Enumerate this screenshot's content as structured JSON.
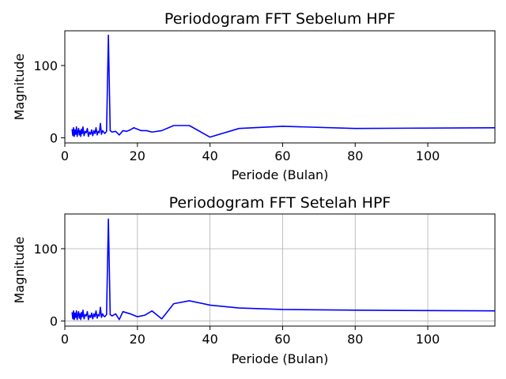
{
  "chart_data": [
    {
      "type": "line",
      "title": "Periodogram FFT Sebelum HPF",
      "xlabel": "Periode (Bulan)",
      "ylabel": "Magnitude",
      "xlim": [
        0,
        118.5
      ],
      "ylim": [
        -7,
        148
      ],
      "xticks": [
        "0",
        "20",
        "40",
        "60",
        "80",
        "100"
      ],
      "yticks": [
        "0",
        "100"
      ],
      "grid": false,
      "line_color": "#0000ff",
      "series": [
        {
          "x": [
            2.0,
            2.2,
            2.4,
            2.6,
            2.8,
            3.0,
            3.2,
            3.4,
            3.6,
            3.8,
            4.0,
            4.2,
            4.4,
            4.6,
            4.8,
            5.0,
            5.3,
            5.6,
            5.9,
            6.2,
            6.5,
            6.8,
            7.1,
            7.4,
            7.7,
            8.0,
            8.3,
            8.6,
            8.9,
            9.2,
            9.5,
            9.8,
            10.1,
            10.4,
            10.7,
            11.0,
            11.5,
            12.0,
            12.5,
            13.0,
            14.0,
            15.0,
            16.0,
            17.0,
            18.0,
            19.0,
            20.0,
            21.0,
            22.5,
            24.0,
            26.7,
            30.0,
            34.3,
            40.0,
            48.0,
            60.0,
            80.0,
            120.0
          ],
          "y": [
            12,
            3,
            14,
            2,
            11,
            5,
            15,
            2,
            9,
            13,
            4,
            10,
            2,
            12,
            6,
            15,
            3,
            9,
            7,
            13,
            2,
            8,
            5,
            11,
            3,
            10,
            6,
            14,
            4,
            9,
            7,
            20,
            5,
            10,
            8,
            6,
            9,
            142,
            10,
            8,
            9,
            4,
            10,
            9,
            11,
            14,
            12,
            10,
            10,
            8,
            10,
            17,
            17,
            1,
            13,
            16,
            13,
            14
          ]
        }
      ]
    },
    {
      "type": "line",
      "title": "Periodogram FFT Setelah HPF",
      "xlabel": "Periode (Bulan)",
      "ylabel": "Magnitude",
      "xlim": [
        0,
        118.5
      ],
      "ylim": [
        -7,
        148
      ],
      "xticks": [
        "0",
        "20",
        "40",
        "60",
        "80",
        "100"
      ],
      "yticks": [
        "0",
        "100"
      ],
      "grid": true,
      "line_color": "#0000ff",
      "series": [
        {
          "x": [
            2.0,
            2.2,
            2.4,
            2.6,
            2.8,
            3.0,
            3.2,
            3.4,
            3.6,
            3.8,
            4.0,
            4.2,
            4.4,
            4.6,
            4.8,
            5.0,
            5.3,
            5.6,
            5.9,
            6.2,
            6.5,
            6.8,
            7.1,
            7.4,
            7.7,
            8.0,
            8.3,
            8.6,
            8.9,
            9.2,
            9.5,
            9.8,
            10.1,
            10.4,
            10.7,
            11.0,
            11.5,
            12.0,
            12.5,
            13.0,
            14.0,
            15.0,
            16.0,
            18.0,
            20.0,
            22.0,
            24.0,
            26.7,
            30.0,
            34.3,
            40.0,
            48.0,
            60.0,
            80.0,
            120.0
          ],
          "y": [
            12,
            3,
            14,
            2,
            11,
            5,
            14,
            2,
            9,
            13,
            4,
            10,
            2,
            12,
            6,
            15,
            3,
            9,
            7,
            13,
            2,
            8,
            5,
            11,
            3,
            10,
            6,
            14,
            4,
            9,
            7,
            19,
            5,
            10,
            7,
            6,
            9,
            141,
            9,
            7,
            10,
            2,
            13,
            10,
            6,
            8,
            14,
            3,
            24,
            28,
            22,
            18,
            16,
            15,
            14
          ]
        }
      ]
    }
  ]
}
